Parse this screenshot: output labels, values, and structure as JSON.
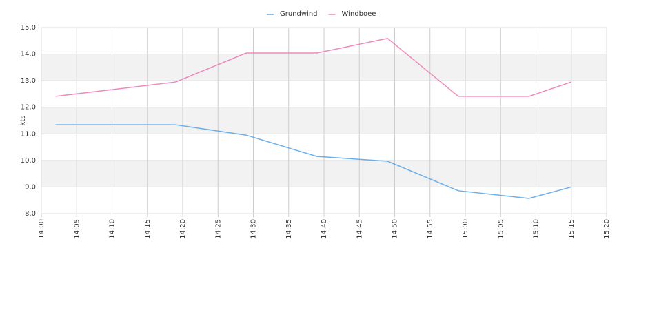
{
  "chart_data": {
    "type": "line",
    "y_label": "kts",
    "x": [
      "14:02",
      "14:19",
      "14:29",
      "14:39",
      "14:49",
      "14:59",
      "15:09",
      "15:15"
    ],
    "series": [
      {
        "name": "Grundwind",
        "color": "#6aaeea",
        "values": [
          11.34,
          11.34,
          10.95,
          10.15,
          9.97,
          8.86,
          8.57,
          9.0
        ]
      },
      {
        "name": "Windboee",
        "color": "#ee88bb",
        "values": [
          12.41,
          12.95,
          14.04,
          14.04,
          14.59,
          12.41,
          12.41,
          12.95
        ]
      }
    ],
    "xlim": [
      "14:00",
      "15:20"
    ],
    "xticks": [
      "14:00",
      "14:05",
      "14:10",
      "14:15",
      "14:20",
      "14:25",
      "14:30",
      "14:35",
      "14:40",
      "14:45",
      "14:50",
      "14:55",
      "15:00",
      "15:05",
      "15:10",
      "15:15",
      "15:20"
    ],
    "ylim": [
      8,
      15
    ],
    "yticks": [
      {
        "value": 8,
        "label": "8.0"
      },
      {
        "value": 9,
        "label": "9.0"
      },
      {
        "value": 10,
        "label": "10.0"
      },
      {
        "value": 11,
        "label": "11.0"
      },
      {
        "value": 12,
        "label": "12.0"
      },
      {
        "value": 13,
        "label": "13.0"
      },
      {
        "value": 14,
        "label": "14.0"
      },
      {
        "value": 15,
        "label": "15.0"
      }
    ],
    "grid": true,
    "legend": "top"
  }
}
